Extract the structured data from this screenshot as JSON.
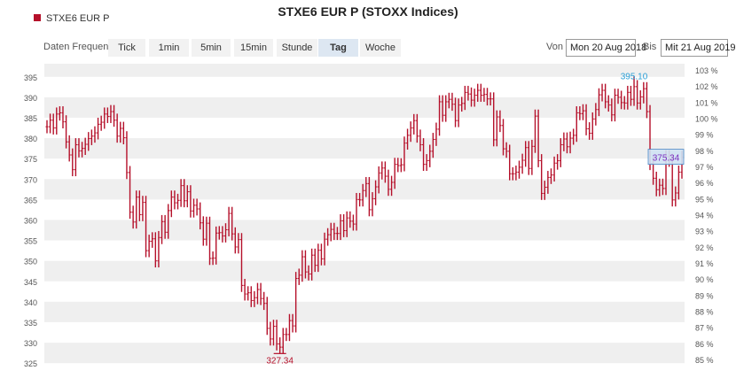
{
  "title": "STXE6 EUR P (STOXX Indices)",
  "legend": {
    "label": "STXE6 EUR P",
    "color": "#b5102a"
  },
  "frequency": {
    "label": "Daten Frequenz",
    "buttons": [
      "Tick",
      "1min",
      "5min",
      "15min",
      "Stunde",
      "Tag",
      "Woche"
    ],
    "active": "Tag"
  },
  "date_range": {
    "from_label": "Von",
    "from_value": "Mon 20 Aug 2018",
    "to_label": "Bis",
    "to_value": "Mit 21 Aug 2019"
  },
  "colors": {
    "bar": "#b5102a",
    "high_label": "#2a9fd6",
    "last_label": "#7b2fbf",
    "band": "#efefef"
  },
  "chart_data": {
    "type": "line",
    "style": "ohlc-bars",
    "series": [
      {
        "name": "STXE6 EUR P",
        "daily_closes": [
          382.8,
          384.4,
          382.5,
          385.9,
          386.2,
          384.0,
          379.1,
          375.9,
          372.3,
          378.4,
          376.9,
          377.5,
          378.5,
          379.9,
          380.5,
          381.3,
          383.4,
          383.9,
          385.9,
          385.3,
          386.5,
          384.4,
          380.5,
          382.4,
          380.1,
          371.6,
          361.9,
          359.5,
          365.6,
          361.3,
          364.3,
          352.5,
          354.8,
          355.4,
          350.0,
          355.7,
          359.6,
          357.0,
          362.3,
          365.6,
          364.2,
          364.8,
          368.4,
          364.7,
          366.9,
          362.2,
          363.6,
          362.7,
          359.3,
          355.3,
          359.2,
          350.6,
          350.7,
          356.8,
          356.9,
          356.1,
          357.6,
          361.6,
          356.6,
          353.4,
          355.2,
          344.0,
          341.9,
          342.2,
          340.3,
          341.0,
          343.0,
          340.8,
          339.6,
          333.5,
          330.9,
          334.0,
          329.7,
          328.9,
          332.0,
          332.0,
          335.4,
          334.1,
          345.7,
          346.5,
          351.0,
          347.3,
          346.8,
          351.4,
          348.9,
          352.6,
          350.5,
          355.3,
          356.4,
          357.7,
          356.7,
          356.7,
          359.8,
          357.4,
          360.5,
          359.7,
          359.0,
          365.0,
          364.9,
          367.2,
          368.9,
          362.5,
          365.2,
          368.1,
          371.5,
          372.7,
          370.7,
          367.5,
          369.2,
          373.6,
          373.3,
          373.5,
          378.8,
          380.7,
          382.5,
          384.3,
          380.5,
          378.4,
          373.6,
          374.5,
          376.8,
          379.7,
          382.2,
          388.9,
          385.6,
          388.9,
          389.5,
          388.3,
          384.3,
          388.1,
          388.5,
          391.2,
          390.8,
          389.3,
          390.5,
          391.7,
          390.5,
          390.7,
          389.6,
          389.6,
          379.6,
          385.2,
          383.1,
          377.4,
          376.8,
          371.3,
          371.3,
          371.7,
          372.9,
          374.6,
          377.7,
          372.6,
          378.0,
          385.4,
          374.5,
          366.5,
          368.0,
          370.4,
          371.0,
          373.9,
          374.5,
          378.4,
          379.8,
          377.9,
          380.0,
          380.7,
          386.2,
          386.0,
          386.7,
          382.3,
          381.2,
          384.7,
          387.0,
          390.6,
          391.7,
          388.9,
          388.1,
          385.7,
          390.5,
          390.0,
          388.7,
          388.6,
          391.2,
          389.5,
          392.6,
          388.6,
          390.1,
          392.1,
          386.5,
          373.8,
          370.2,
          367.4,
          368.5,
          367.7,
          375.5,
          374.6,
          364.9,
          366.6,
          371.7,
          375.3
        ],
        "high": 395.1,
        "low": 327.34,
        "last": 375.34
      }
    ],
    "x": {
      "start": "20 Aug 2018",
      "end": "21 Aug 2019",
      "labels": []
    },
    "y": {
      "ticks": [
        325,
        330,
        335,
        340,
        345,
        350,
        355,
        360,
        365,
        370,
        375,
        380,
        385,
        390,
        395
      ],
      "ylim": [
        323.3,
        398.2
      ]
    },
    "y2": {
      "ticks": [
        "85 %",
        "86 %",
        "87 %",
        "88 %",
        "89 %",
        "90 %",
        "91 %",
        "92 %",
        "93 %",
        "94 %",
        "95 %",
        "96 %",
        "97 %",
        "98 %",
        "99 %",
        "100 %",
        "101 %",
        "102 %",
        "103 %"
      ]
    },
    "annotations": {
      "max_label": "395.10",
      "min_label": "327.34",
      "last_label": "375.34"
    },
    "grid": "alternating horizontal bands"
  }
}
